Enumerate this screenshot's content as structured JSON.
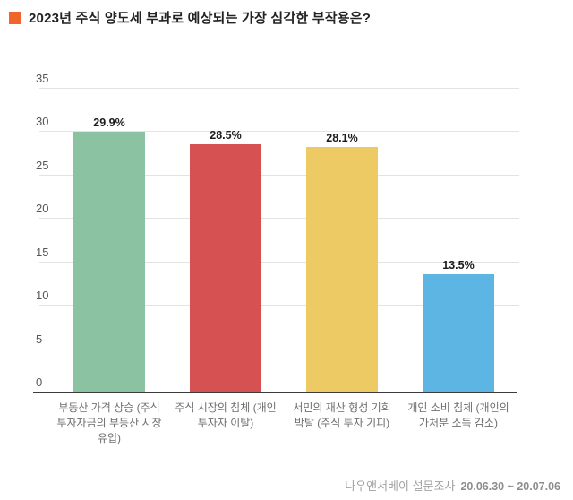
{
  "header": {
    "title": "2023년 주식 양도세 부과로 예상되는 가장 심각한 부작용은?",
    "bullet_color": "#f0662a"
  },
  "chart_data": {
    "type": "bar",
    "title": "2023년 주식 양도세 부과로 예상되는 가장 심각한 부작용은?",
    "categories": [
      "부동산 가격 상승 (주식 투자자금의 부동산 시장 유입)",
      "주식 시장의 침체 (개인 투자자 이탈)",
      "서민의 재산 형성 기회 박탈 (주식 투자 기피)",
      "개인 소비 침체 (개인의 가처분 소득 감소)"
    ],
    "category_lines": [
      [
        "부동산 가격 상승 (주식",
        "투자자금의 부동산 시장",
        "유입)"
      ],
      [
        "주식 시장의 침체 (개인",
        "투자자 이탈)"
      ],
      [
        "서민의 재산 형성 기회",
        "박탈 (주식 투자 기피)"
      ],
      [
        "개인 소비 침체 (개인의",
        "가처분 소득 감소)"
      ]
    ],
    "values": [
      29.9,
      28.5,
      28.1,
      13.5
    ],
    "value_labels": [
      "29.9%",
      "28.5%",
      "28.1%",
      "13.5%"
    ],
    "bar_colors": [
      "#8ac2a2",
      "#d65151",
      "#eeca64",
      "#5db5e3"
    ],
    "xlabel": "",
    "ylabel": "",
    "ylim": [
      0,
      35
    ],
    "ytick_interval": 5,
    "yticks": [
      0,
      5,
      10,
      15,
      20,
      25,
      30,
      35
    ],
    "grid": true,
    "legend_position": "none",
    "gridline_color": "#e3e3e3",
    "axis_line_color": "#3d3d3d"
  },
  "footer": {
    "source": "나우앤서베이 설문조사",
    "period": "20.06.30 ~ 20.07.06"
  }
}
